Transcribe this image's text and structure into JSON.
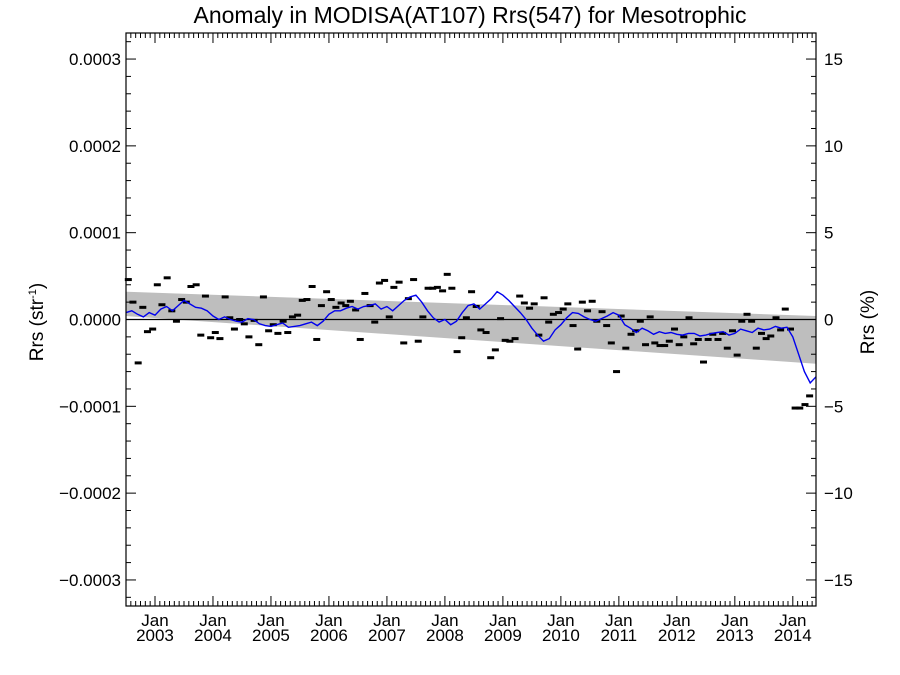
{
  "chart_data": {
    "type": "line",
    "title": "Anomaly in MODISA(AT107) Rrs(547) for Mesotrophic",
    "ylabel_left": "Rrs (str",
    "ylabel_left_sup": "-1",
    "ylabel_left_suffix": ")",
    "ylabel_right": "Rrs (%)",
    "xlim": [
      2002.5,
      2014.4
    ],
    "ylim": [
      -0.00033,
      0.00033
    ],
    "ylim_right": [
      -16.5,
      16.5
    ],
    "y_ticks": [
      {
        "v": 0.0003,
        "label": "0.0003"
      },
      {
        "v": 0.0002,
        "label": "0.0002"
      },
      {
        "v": 0.0001,
        "label": "0.0001"
      },
      {
        "v": 0.0,
        "label": "0.0000"
      },
      {
        "v": -0.0001,
        "label": "−0.0001"
      },
      {
        "v": -0.0002,
        "label": "−0.0002"
      },
      {
        "v": -0.0003,
        "label": "−0.0003"
      }
    ],
    "y_ticks_right": [
      {
        "v": 15,
        "label": "15"
      },
      {
        "v": 10,
        "label": "10"
      },
      {
        "v": 5,
        "label": "5"
      },
      {
        "v": 0,
        "label": "0"
      },
      {
        "v": -5,
        "label": "−5"
      },
      {
        "v": -10,
        "label": "−10"
      },
      {
        "v": -15,
        "label": "−15"
      }
    ],
    "x_ticks": [
      {
        "v": 2003.0,
        "month": "Jan",
        "year": "2003"
      },
      {
        "v": 2004.0,
        "month": "Jan",
        "year": "2004"
      },
      {
        "v": 2005.0,
        "month": "Jan",
        "year": "2005"
      },
      {
        "v": 2006.0,
        "month": "Jan",
        "year": "2006"
      },
      {
        "v": 2007.0,
        "month": "Jan",
        "year": "2007"
      },
      {
        "v": 2008.0,
        "month": "Jan",
        "year": "2008"
      },
      {
        "v": 2009.0,
        "month": "Jan",
        "year": "2009"
      },
      {
        "v": 2010.0,
        "month": "Jan",
        "year": "2010"
      },
      {
        "v": 2011.0,
        "month": "Jan",
        "year": "2011"
      },
      {
        "v": 2012.0,
        "month": "Jan",
        "year": "2012"
      },
      {
        "v": 2013.0,
        "month": "Jan",
        "year": "2013"
      },
      {
        "v": 2014.0,
        "month": "Jan",
        "year": "2014"
      }
    ],
    "band": {
      "x": [
        2002.5,
        2014.4
      ],
      "upper": [
        3.2e-05,
        4e-06
      ],
      "lower": [
        4e-06,
        -5.1e-05
      ],
      "color": "#bebebe"
    },
    "monthly_points": {
      "x": [
        2002.54,
        2002.62,
        2002.71,
        2002.79,
        2002.87,
        2002.96,
        2003.04,
        2003.12,
        2003.21,
        2003.29,
        2003.37,
        2003.46,
        2003.54,
        2003.62,
        2003.71,
        2003.79,
        2003.87,
        2003.96,
        2004.04,
        2004.12,
        2004.21,
        2004.29,
        2004.37,
        2004.46,
        2004.54,
        2004.62,
        2004.71,
        2004.79,
        2004.87,
        2004.96,
        2005.04,
        2005.12,
        2005.21,
        2005.29,
        2005.37,
        2005.46,
        2005.54,
        2005.62,
        2005.71,
        2005.79,
        2005.87,
        2005.96,
        2006.04,
        2006.12,
        2006.21,
        2006.29,
        2006.37,
        2006.46,
        2006.54,
        2006.62,
        2006.71,
        2006.79,
        2006.87,
        2006.96,
        2007.04,
        2007.12,
        2007.21,
        2007.29,
        2007.37,
        2007.46,
        2007.54,
        2007.62,
        2007.71,
        2007.79,
        2007.87,
        2007.96,
        2008.04,
        2008.12,
        2008.21,
        2008.29,
        2008.37,
        2008.46,
        2008.54,
        2008.62,
        2008.71,
        2008.79,
        2008.87,
        2008.96,
        2009.04,
        2009.12,
        2009.21,
        2009.29,
        2009.37,
        2009.46,
        2009.54,
        2009.62,
        2009.71,
        2009.79,
        2009.87,
        2009.96,
        2010.04,
        2010.12,
        2010.21,
        2010.29,
        2010.37,
        2010.46,
        2010.54,
        2010.62,
        2010.71,
        2010.79,
        2010.87,
        2010.96,
        2011.04,
        2011.12,
        2011.21,
        2011.29,
        2011.37,
        2011.46,
        2011.54,
        2011.62,
        2011.71,
        2011.79,
        2011.87,
        2011.96,
        2012.04,
        2012.12,
        2012.21,
        2012.29,
        2012.37,
        2012.46,
        2012.54,
        2012.62,
        2012.71,
        2012.79,
        2012.87,
        2012.96,
        2013.04,
        2013.12,
        2013.21,
        2013.29,
        2013.37,
        2013.46,
        2013.54,
        2013.62,
        2013.71,
        2013.79,
        2013.87,
        2013.96,
        2014.04,
        2014.12,
        2014.21,
        2014.29
      ],
      "y": [
        4.6e-05,
        2e-05,
        -5e-05,
        1.4e-05,
        -1.4e-05,
        -1.1e-05,
        4e-05,
        1.7e-05,
        4.8e-05,
        1e-05,
        -2e-06,
        2.3e-05,
        2e-05,
        3.8e-05,
        4e-05,
        -1.8e-05,
        2.7e-05,
        -2.1e-05,
        -1.5e-05,
        -2.2e-05,
        2.6e-05,
        2e-06,
        -1.1e-05,
        0.0,
        -5e-06,
        -2e-05,
        -1e-06,
        -2.9e-05,
        2.6e-05,
        -1.3e-05,
        -6e-06,
        -1.6e-05,
        -2e-06,
        -1.5e-05,
        3e-06,
        5e-06,
        2.2e-05,
        2.3e-05,
        3.8e-05,
        -2.3e-05,
        1.6e-05,
        3.2e-05,
        2.3e-05,
        1.4e-05,
        1.9e-05,
        1.6e-05,
        2.1e-05,
        1.1e-05,
        -2.3e-05,
        3e-05,
        1.6e-05,
        -3e-06,
        4.2e-05,
        4.5e-05,
        3e-06,
        3.7e-05,
        4.3e-05,
        -2.7e-05,
        2.4e-05,
        4.6e-05,
        -2.5e-05,
        3e-06,
        3.6e-05,
        3.6e-05,
        3.7e-05,
        3.3e-05,
        5.2e-05,
        3.6e-05,
        -3.7e-05,
        -2.1e-05,
        2e-06,
        3.2e-05,
        1.5e-05,
        -1.2e-05,
        -1.5e-05,
        -4.4e-05,
        -3.5e-05,
        1e-06,
        -2.4e-05,
        -2.5e-05,
        -2.2e-05,
        2.7e-05,
        1.9e-05,
        1.3e-05,
        1.8e-05,
        -1.8e-05,
        2.5e-05,
        -3e-06,
        6e-06,
        8e-06,
        1.2e-05,
        1.8e-05,
        -7e-06,
        -3.4e-05,
        2e-05,
        1e-05,
        2.1e-05,
        -2e-06,
        9e-06,
        -7e-06,
        -2.7e-05,
        -6e-05,
        4e-06,
        -3.3e-05,
        -1.7e-05,
        -1.3e-05,
        -2e-06,
        -2.9e-05,
        3e-06,
        -2.7e-05,
        -3e-05,
        -3e-05,
        -2.5e-05,
        -1.1e-05,
        -2.9e-05,
        -2e-05,
        2e-06,
        -2.8e-05,
        -2.3e-05,
        -4.9e-05,
        -2.3e-05,
        -1.7e-05,
        -2.3e-05,
        -1.6e-05,
        -3.3e-05,
        -1.3e-05,
        -4.1e-05,
        -2e-06,
        6e-06,
        -2e-06,
        -3.3e-05,
        -1.6e-05,
        -2.2e-05,
        -1.9e-05,
        2e-06,
        -1.2e-05,
        1.2e-05,
        -1.1e-05,
        -0.000102,
        -0.000102,
        -9.8e-05,
        -8.8e-05
      ],
      "color": "#000000"
    },
    "smoothed_series": {
      "x": [
        2002.5,
        2002.6,
        2002.7,
        2002.8,
        2002.9,
        2003.0,
        2003.1,
        2003.2,
        2003.3,
        2003.4,
        2003.5,
        2003.6,
        2003.7,
        2003.8,
        2003.9,
        2004.0,
        2004.1,
        2004.2,
        2004.3,
        2004.4,
        2004.5,
        2004.6,
        2004.7,
        2004.8,
        2004.9,
        2005.0,
        2005.1,
        2005.2,
        2005.3,
        2005.4,
        2005.5,
        2005.6,
        2005.7,
        2005.8,
        2005.9,
        2006.0,
        2006.1,
        2006.2,
        2006.3,
        2006.4,
        2006.5,
        2006.6,
        2006.7,
        2006.8,
        2006.9,
        2007.0,
        2007.1,
        2007.2,
        2007.3,
        2007.4,
        2007.5,
        2007.6,
        2007.7,
        2007.8,
        2007.9,
        2008.0,
        2008.1,
        2008.2,
        2008.3,
        2008.4,
        2008.5,
        2008.6,
        2008.7,
        2008.8,
        2008.9,
        2009.0,
        2009.1,
        2009.2,
        2009.3,
        2009.4,
        2009.5,
        2009.6,
        2009.7,
        2009.8,
        2009.9,
        2010.0,
        2010.1,
        2010.2,
        2010.3,
        2010.4,
        2010.5,
        2010.6,
        2010.7,
        2010.8,
        2010.9,
        2011.0,
        2011.1,
        2011.2,
        2011.3,
        2011.4,
        2011.5,
        2011.6,
        2011.7,
        2011.8,
        2011.9,
        2012.0,
        2012.1,
        2012.2,
        2012.3,
        2012.4,
        2012.5,
        2012.6,
        2012.7,
        2012.8,
        2012.9,
        2013.0,
        2013.1,
        2013.2,
        2013.3,
        2013.4,
        2013.5,
        2013.6,
        2013.7,
        2013.8,
        2013.9,
        2014.0,
        2014.1,
        2014.2,
        2014.3,
        2014.4
      ],
      "y": [
        8e-06,
        1e-05,
        6e-06,
        3e-06,
        8e-06,
        5e-06,
        1.2e-05,
        1.5e-05,
        1e-05,
        1.6e-05,
        2.2e-05,
        1.8e-05,
        1.4e-05,
        1.3e-05,
        1e-05,
        4e-06,
        0.0,
        3e-06,
        0.0,
        -2e-06,
        -3e-06,
        1e-06,
        0.0,
        -5e-06,
        -7e-06,
        -8e-06,
        -6e-06,
        -4e-06,
        -9e-06,
        -8e-06,
        -7e-06,
        -5e-06,
        -3e-06,
        -7e-06,
        -2e-06,
        6e-06,
        1e-05,
        1e-05,
        1.3e-05,
        1.5e-05,
        1.2e-05,
        1.5e-05,
        1.6e-05,
        1.8e-05,
        1.2e-05,
        1.5e-05,
        1e-05,
        1.6e-05,
        2.2e-05,
        2.6e-05,
        2.8e-05,
        2e-05,
        1e-05,
        2e-06,
        -3e-06,
        0.0,
        -6e-06,
        -2e-06,
        8e-06,
        1.6e-05,
        1.8e-05,
        1.2e-05,
        1.8e-05,
        2.4e-05,
        3.2e-05,
        2.8e-05,
        2.2e-05,
        1.5e-05,
        8e-06,
        0.0,
        -1e-05,
        -1.8e-05,
        -2.5e-05,
        -2.2e-05,
        -1.2e-05,
        -6e-06,
        2e-06,
        8e-06,
        7e-06,
        3e-06,
        0.0,
        -2e-06,
        1e-06,
        4e-06,
        8e-06,
        5e-06,
        -6e-06,
        -1e-05,
        -1.5e-05,
        -1e-05,
        -1.3e-05,
        -1.7e-05,
        -1.4e-05,
        -1.6e-05,
        -1.5e-05,
        -1.7e-05,
        -1.8e-05,
        -1.6e-05,
        -1.6e-05,
        -1.9e-05,
        -1.8e-05,
        -1.6e-05,
        -1.5e-05,
        -1.4e-05,
        -1.8e-05,
        -1.6e-05,
        -1.1e-05,
        -1.3e-05,
        -1.5e-05,
        -1e-05,
        -1.2e-05,
        -1.1e-05,
        -8e-06,
        -1e-05,
        -9e-06,
        -2e-05,
        -4e-05,
        -6e-05,
        -7.3e-05,
        -6.6e-05
      ],
      "color": "#0000ee"
    },
    "zero_line": 0,
    "grid": false,
    "legend": "none"
  }
}
